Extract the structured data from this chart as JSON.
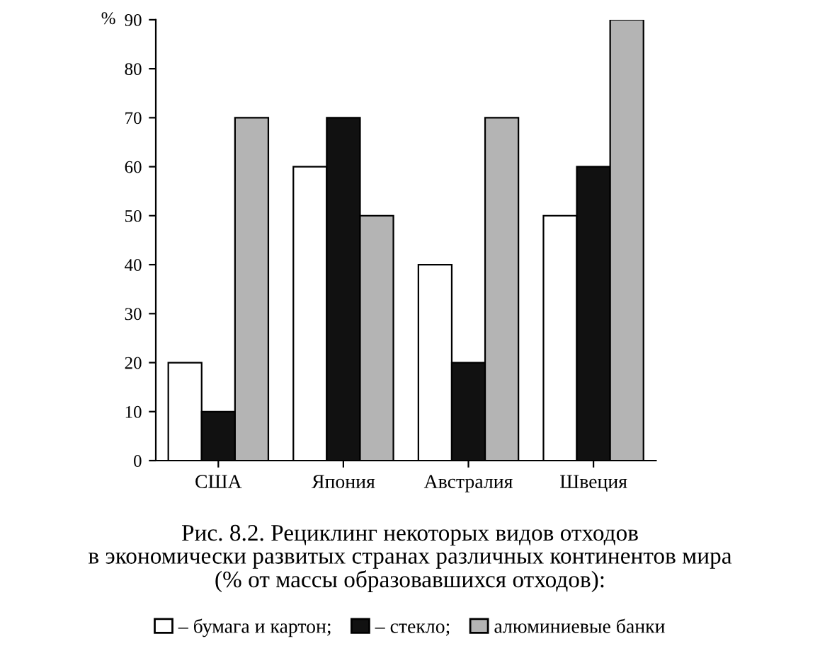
{
  "chart_data": {
    "type": "bar",
    "title": "Рис. 8.2. Рециклинг некоторых видов отходов\nв экономически развитых странах различных континентов мира\n(% от массы образовавшихся отходов):",
    "ylabel": "%",
    "categories": [
      "США",
      "Япония",
      "Австралия",
      "Швеция"
    ],
    "series": [
      {
        "name": "– бумага и картон;",
        "color": "#ffffff",
        "values": [
          20,
          60,
          40,
          50
        ]
      },
      {
        "name": "– стекло;",
        "color": "#111111",
        "values": [
          10,
          70,
          20,
          60
        ]
      },
      {
        "name": "алюминиевые банки",
        "color": "#b4b4b4",
        "values": [
          70,
          50,
          70,
          90
        ]
      }
    ],
    "ylim": [
      0,
      90
    ],
    "yticks": [
      0,
      10,
      20,
      30,
      40,
      50,
      60,
      70,
      80,
      90
    ],
    "grid": false,
    "legend": "bottom"
  }
}
